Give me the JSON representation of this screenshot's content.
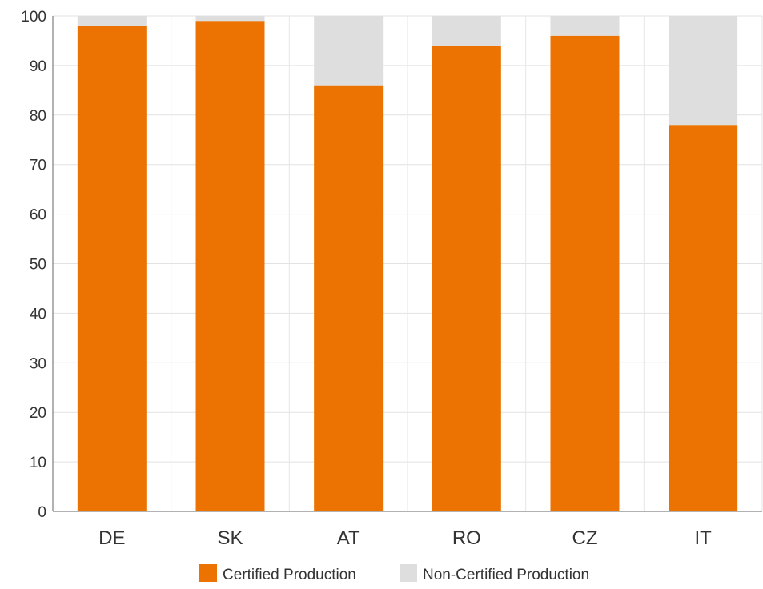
{
  "chart_data": {
    "type": "bar",
    "stacked": true,
    "categories": [
      "DE",
      "SK",
      "AT",
      "RO",
      "CZ",
      "IT"
    ],
    "series": [
      {
        "name": "Certified Production",
        "color": "#ec7301",
        "values": [
          98,
          99,
          86,
          94,
          96,
          78
        ]
      },
      {
        "name": "Non-Certified Production",
        "color": "#dedede",
        "values": [
          2,
          1,
          14,
          6,
          4,
          22
        ]
      }
    ],
    "title": "",
    "xlabel": "",
    "ylabel": "",
    "ylim": [
      0,
      100
    ],
    "yticks": [
      0,
      10,
      20,
      30,
      40,
      50,
      60,
      70,
      80,
      90,
      100
    ],
    "grid": true,
    "legend_position": "bottom-center"
  }
}
